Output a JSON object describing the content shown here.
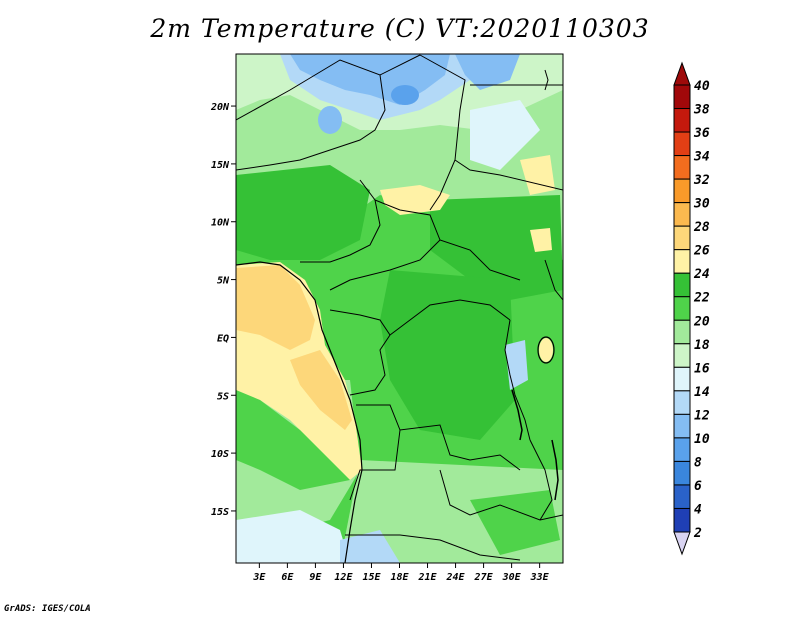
{
  "title": "2m Temperature (C) VT:2020110303",
  "credit": "GrADS: IGES/COLA",
  "map": {
    "lat_ticks": [
      "20N",
      "15N",
      "10N",
      "5N",
      "EQ",
      "5S",
      "10S",
      "15S"
    ],
    "lon_ticks": [
      "3E",
      "6E",
      "9E",
      "12E",
      "15E",
      "18E",
      "21E",
      "24E",
      "27E",
      "30E",
      "33E"
    ],
    "lat_values": [
      20,
      15,
      10,
      5,
      0,
      -5,
      -10,
      -15
    ],
    "lon_values": [
      3,
      6,
      9,
      12,
      15,
      18,
      21,
      24,
      27,
      30,
      33
    ],
    "lat_range": [
      -19.5,
      24.5
    ],
    "lon_range": [
      0.5,
      35.5
    ]
  },
  "colorbar": {
    "levels": [
      "2",
      "4",
      "6",
      "8",
      "10",
      "12",
      "14",
      "16",
      "18",
      "20",
      "22",
      "24",
      "26",
      "28",
      "30",
      "32",
      "34",
      "36",
      "38",
      "40"
    ],
    "colors": [
      "#1a1a8c",
      "#1f3fb5",
      "#2a62c9",
      "#3a86dd",
      "#5aa2ec",
      "#84bdf3",
      "#b3d9f7",
      "#dff5fb",
      "#cdf5c8",
      "#a2ea9b",
      "#4fd34a",
      "#35c136",
      "#fff2a6",
      "#fdd77a",
      "#fbb94f",
      "#f99a2a",
      "#f36d1e",
      "#e23f15",
      "#c4190d",
      "#a1080a"
    ],
    "under_color": "#d9d4f2",
    "over_color": "#9e0a0a"
  }
}
